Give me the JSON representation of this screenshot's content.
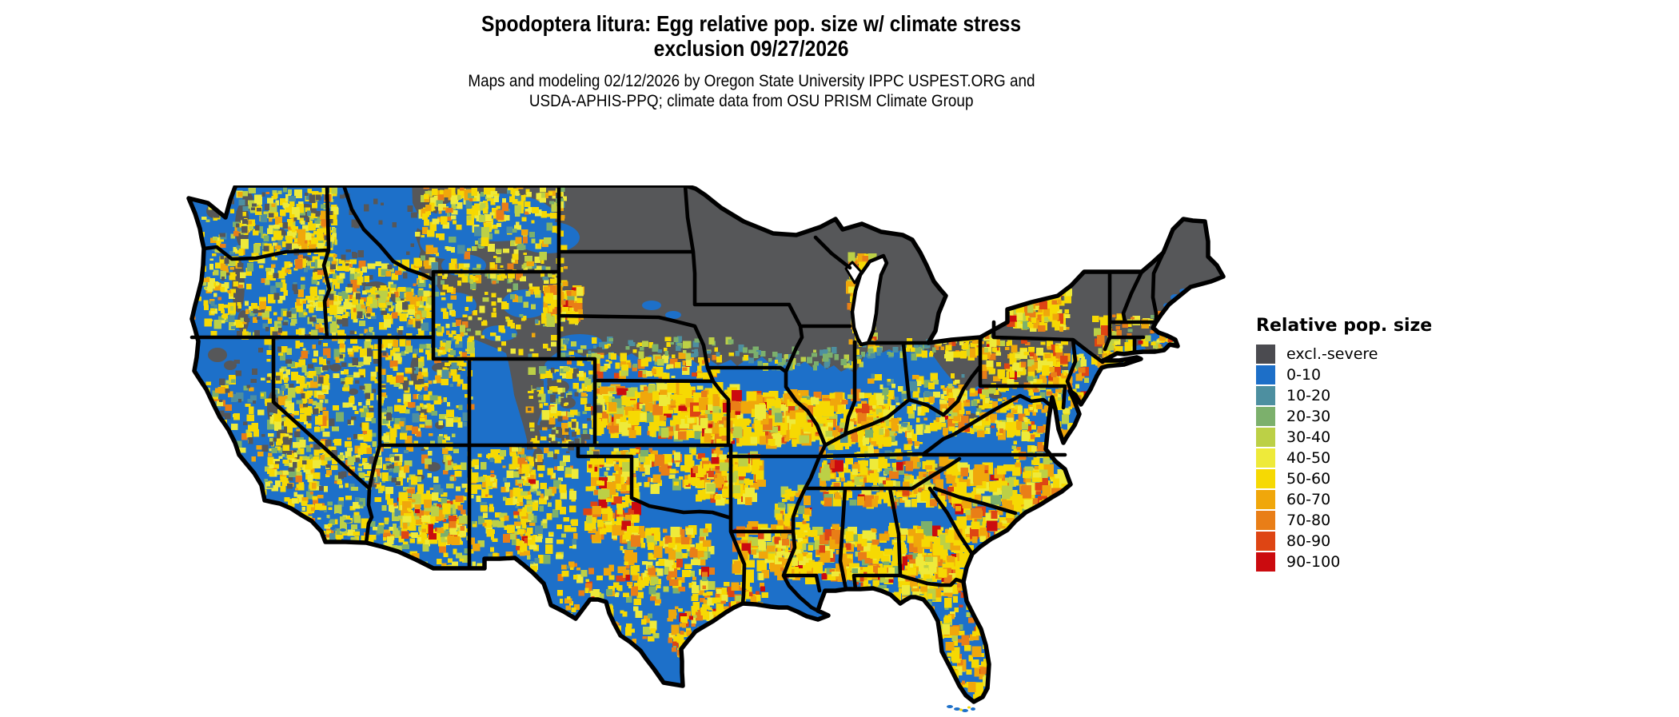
{
  "header": {
    "title_line1": "Spodoptera litura: Egg relative pop. size w/ climate stress",
    "title_line2": "exclusion 09/27/2026",
    "subtitle_line1": "Maps and modeling 02/12/2026 by Oregon State University IPPC USPEST.ORG and",
    "subtitle_line2": "USDA-APHIS-PPQ; climate data from OSU PRISM Climate Group"
  },
  "legend": {
    "title": "Relative pop. size",
    "items": [
      {
        "label": "excl.-severe",
        "color": "#4b4b50"
      },
      {
        "label": "0-10",
        "color": "#1d6fc8"
      },
      {
        "label": "10-20",
        "color": "#4d8fa0"
      },
      {
        "label": "20-30",
        "color": "#7cb06c"
      },
      {
        "label": "30-40",
        "color": "#bcd046"
      },
      {
        "label": "40-50",
        "color": "#eeea3a"
      },
      {
        "label": "50-60",
        "color": "#f6d903"
      },
      {
        "label": "60-70",
        "color": "#f0a70b"
      },
      {
        "label": "70-80",
        "color": "#e97e17"
      },
      {
        "label": "80-90",
        "color": "#de4514"
      },
      {
        "label": "90-100",
        "color": "#cb0b0f"
      }
    ]
  },
  "map": {
    "region": "Contiguous United States",
    "base_color": "#1d70c9",
    "excluded_color": "#565759",
    "border_color": "#000000",
    "water_color": "#ffffff",
    "background": "#ffffff"
  }
}
